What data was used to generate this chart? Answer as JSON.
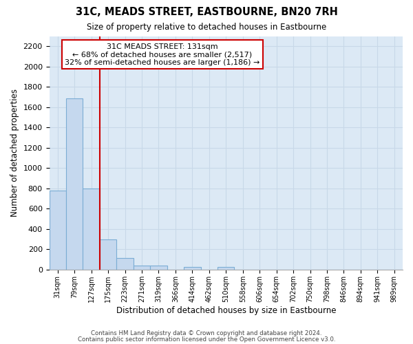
{
  "title": "31C, MEADS STREET, EASTBOURNE, BN20 7RH",
  "subtitle": "Size of property relative to detached houses in Eastbourne",
  "xlabel": "Distribution of detached houses by size in Eastbourne",
  "ylabel": "Number of detached properties",
  "footer_lines": [
    "Contains HM Land Registry data © Crown copyright and database right 2024.",
    "Contains public sector information licensed under the Open Government Licence v3.0."
  ],
  "bin_labels": [
    "31sqm",
    "79sqm",
    "127sqm",
    "175sqm",
    "223sqm",
    "271sqm",
    "319sqm",
    "366sqm",
    "414sqm",
    "462sqm",
    "510sqm",
    "558sqm",
    "606sqm",
    "654sqm",
    "702sqm",
    "750sqm",
    "798sqm",
    "846sqm",
    "894sqm",
    "941sqm",
    "989sqm"
  ],
  "bar_values": [
    780,
    1690,
    800,
    300,
    115,
    40,
    40,
    0,
    30,
    0,
    25,
    0,
    0,
    0,
    0,
    0,
    0,
    0,
    0,
    0,
    0
  ],
  "bar_color": "#c5d8ee",
  "bar_edge_color": "#7badd4",
  "highlight_bar_index": 2,
  "highlight_color": "#cc0000",
  "ylim": [
    0,
    2300
  ],
  "yticks": [
    0,
    200,
    400,
    600,
    800,
    1000,
    1200,
    1400,
    1600,
    1800,
    2000,
    2200
  ],
  "annotation_title": "31C MEADS STREET: 131sqm",
  "annotation_line1": "← 68% of detached houses are smaller (2,517)",
  "annotation_line2": "32% of semi-detached houses are larger (1,186) →",
  "annotation_box_facecolor": "#ffffff",
  "annotation_box_edgecolor": "#cc0000",
  "grid_color": "#c8d8e8",
  "bg_color": "#dce9f5"
}
